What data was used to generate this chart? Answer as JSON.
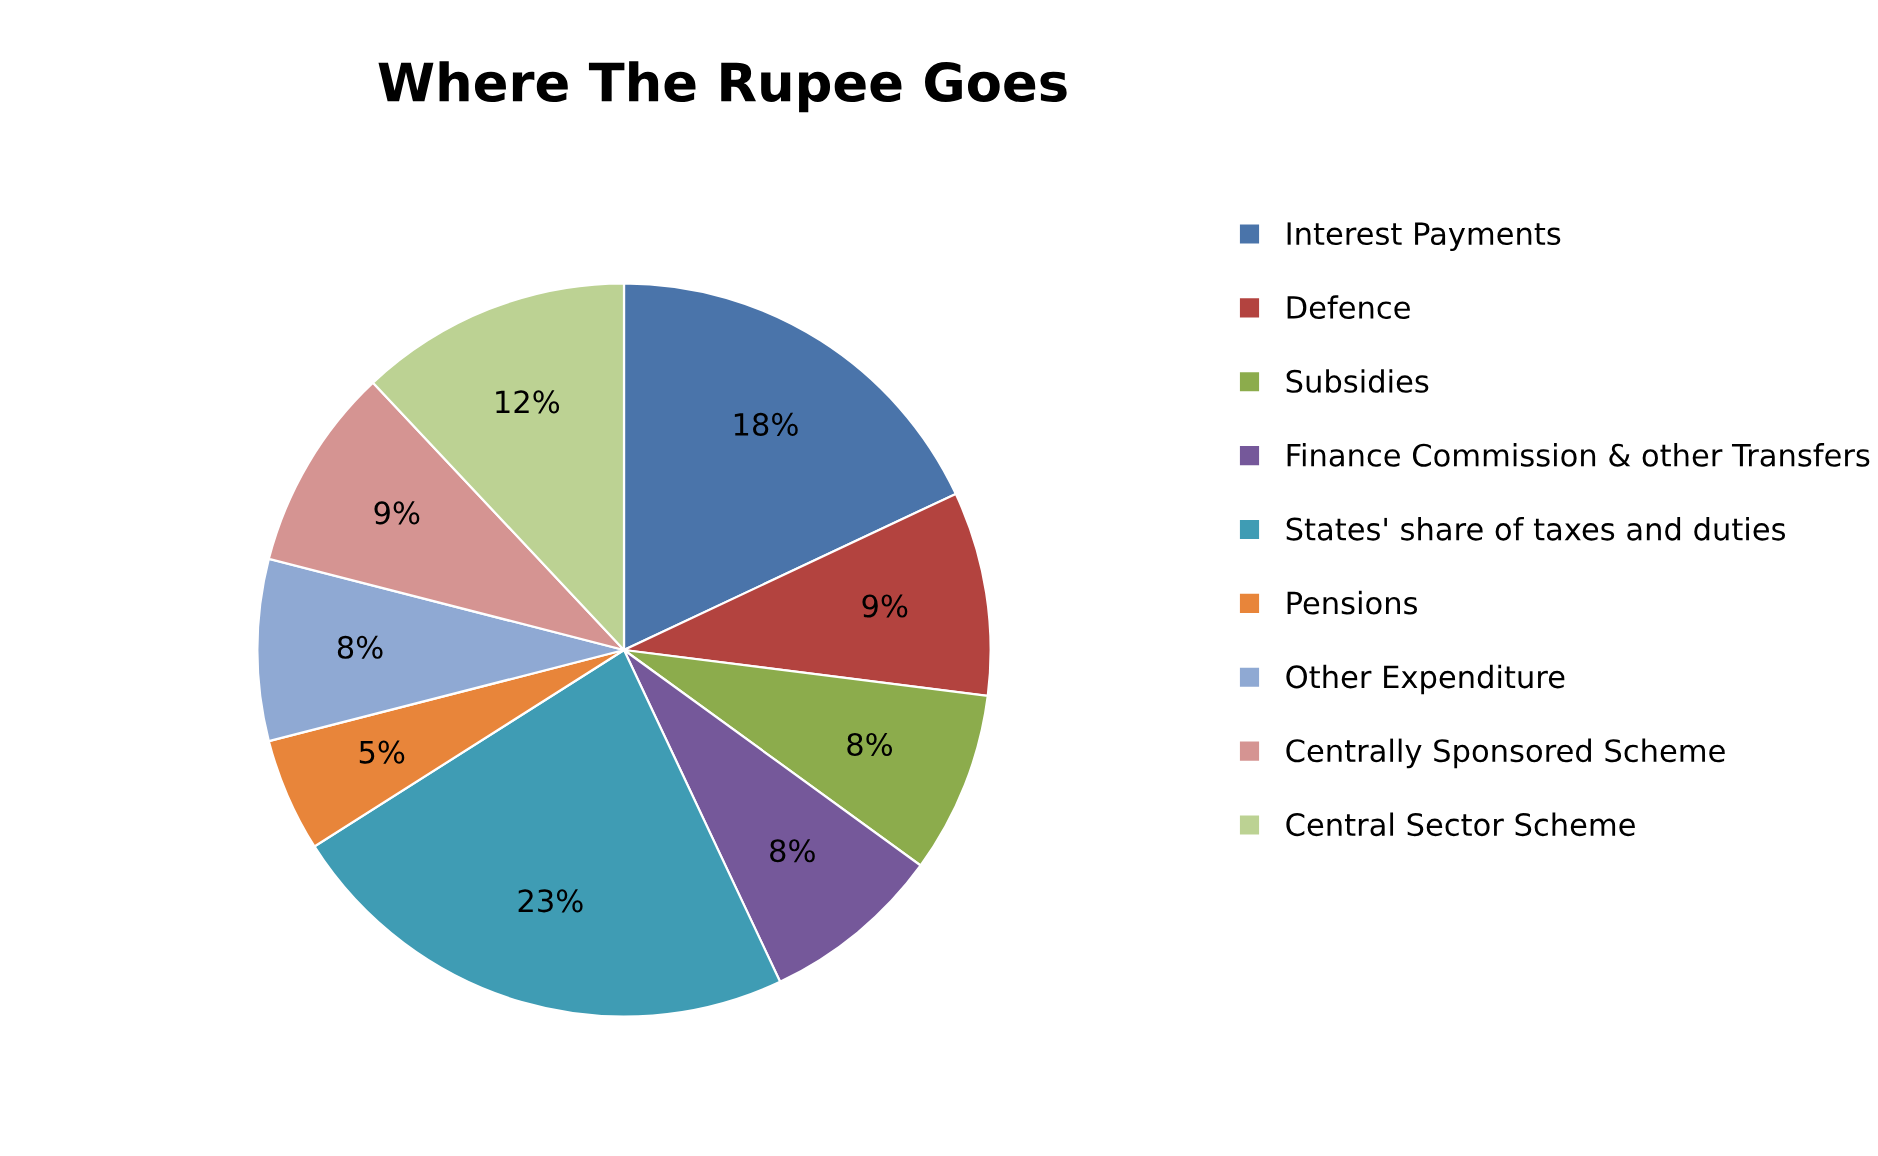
{
  "chart_data": {
    "type": "pie",
    "title": "Where The Rupee Goes",
    "categories": [
      "Interest Payments",
      "Defence",
      "Subsidies",
      "Finance Commission & other Transfers",
      "States' share of taxes and duties",
      "Pensions",
      "Other Expenditure",
      "Centrally Sponsored Scheme",
      "Central Sector Scheme"
    ],
    "values": [
      18,
      9,
      8,
      8,
      23,
      5,
      8,
      9,
      12
    ],
    "value_labels": [
      "18%",
      "9%",
      "8%",
      "8%",
      "23%",
      "5%",
      "8%",
      "9%",
      "12%"
    ],
    "colors": [
      "#4a74aa",
      "#b3433f",
      "#8cac4c",
      "#75589a",
      "#3f9cb4",
      "#e8853a",
      "#8fa9d3",
      "#d59492",
      "#bcd293"
    ],
    "legend": "right"
  }
}
